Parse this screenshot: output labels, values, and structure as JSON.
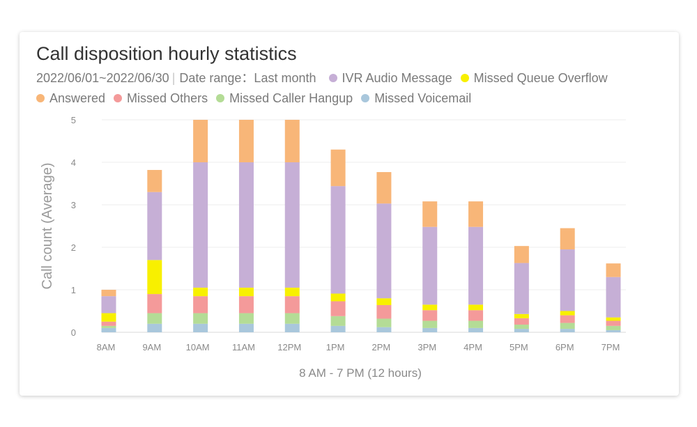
{
  "title": "Call disposition hourly statistics",
  "date_text": "2022/06/01~2022/06/30",
  "date_range_text": "Date range：Last month",
  "chart_data": {
    "type": "bar",
    "stacked": true,
    "title": "Call disposition hourly statistics",
    "xlabel": "8 AM - 7 PM (12 hours)",
    "ylabel": "Call count (Average)",
    "ylim": [
      0,
      5
    ],
    "yticks": [
      "0",
      "1",
      "2",
      "3",
      "4",
      "5"
    ],
    "grid": true,
    "legend_position": "top",
    "categories": [
      "8AM",
      "9AM",
      "10AM",
      "11AM",
      "12PM",
      "1PM",
      "2PM",
      "3PM",
      "4PM",
      "5PM",
      "6PM",
      "7PM"
    ],
    "series": [
      {
        "name": "Missed Voicemail",
        "color": "#a9c7dc",
        "values": [
          0.1,
          0.2,
          0.2,
          0.2,
          0.2,
          0.15,
          0.12,
          0.1,
          0.1,
          0.08,
          0.08,
          0.05
        ]
      },
      {
        "name": "Missed Caller Hangup",
        "color": "#b4dc96",
        "values": [
          0.05,
          0.25,
          0.25,
          0.25,
          0.25,
          0.23,
          0.2,
          0.17,
          0.17,
          0.1,
          0.14,
          0.1
        ]
      },
      {
        "name": "Missed Others",
        "color": "#f49a9a",
        "values": [
          0.1,
          0.45,
          0.4,
          0.4,
          0.4,
          0.35,
          0.32,
          0.25,
          0.25,
          0.15,
          0.18,
          0.12
        ]
      },
      {
        "name": "Missed Queue Overflow",
        "color": "#f8f000",
        "values": [
          0.2,
          0.8,
          0.2,
          0.2,
          0.2,
          0.18,
          0.16,
          0.13,
          0.13,
          0.1,
          0.1,
          0.08
        ]
      },
      {
        "name": "IVR Audio Message",
        "color": "#c6afd6",
        "values": [
          0.4,
          1.6,
          2.95,
          2.95,
          2.95,
          2.53,
          2.23,
          1.83,
          1.83,
          1.2,
          1.45,
          0.95
        ]
      },
      {
        "name": "Answered",
        "color": "#f8b678",
        "values": [
          0.15,
          0.52,
          1.0,
          1.0,
          1.0,
          0.86,
          0.74,
          0.6,
          0.6,
          0.4,
          0.5,
          0.32
        ]
      }
    ]
  },
  "legend_order": [
    4,
    3,
    5,
    2,
    1,
    0
  ]
}
